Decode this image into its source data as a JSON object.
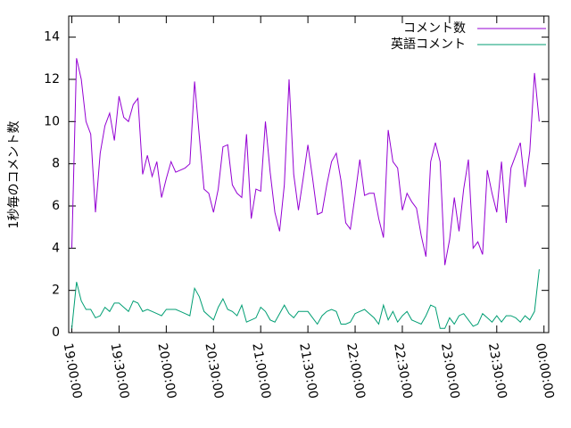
{
  "chart_data": {
    "type": "line",
    "ylabel": "1秒毎のコメント数",
    "x": [
      "19:00:00",
      "19:03:00",
      "19:06:00",
      "19:09:00",
      "19:12:00",
      "19:15:00",
      "19:18:00",
      "19:21:00",
      "19:24:00",
      "19:27:00",
      "19:30:00",
      "19:33:00",
      "19:36:00",
      "19:39:00",
      "19:42:00",
      "19:45:00",
      "19:48:00",
      "19:51:00",
      "19:54:00",
      "19:57:00",
      "20:00:00",
      "20:03:00",
      "20:06:00",
      "20:09:00",
      "20:12:00",
      "20:15:00",
      "20:18:00",
      "20:21:00",
      "20:24:00",
      "20:27:00",
      "20:30:00",
      "20:33:00",
      "20:36:00",
      "20:39:00",
      "20:42:00",
      "20:45:00",
      "20:48:00",
      "20:51:00",
      "20:54:00",
      "20:57:00",
      "21:00:00",
      "21:03:00",
      "21:06:00",
      "21:09:00",
      "21:12:00",
      "21:15:00",
      "21:18:00",
      "21:21:00",
      "21:24:00",
      "21:27:00",
      "21:30:00",
      "21:33:00",
      "21:36:00",
      "21:39:00",
      "21:42:00",
      "21:45:00",
      "21:48:00",
      "21:51:00",
      "21:54:00",
      "21:57:00",
      "22:00:00",
      "22:03:00",
      "22:06:00",
      "22:09:00",
      "22:12:00",
      "22:15:00",
      "22:18:00",
      "22:21:00",
      "22:24:00",
      "22:27:00",
      "22:30:00",
      "22:33:00",
      "22:36:00",
      "22:39:00",
      "22:42:00",
      "22:45:00",
      "22:48:00",
      "22:51:00",
      "22:54:00",
      "22:57:00",
      "23:00:00",
      "23:03:00",
      "23:06:00",
      "23:09:00",
      "23:12:00",
      "23:15:00",
      "23:18:00",
      "23:21:00",
      "23:24:00",
      "23:27:00",
      "23:30:00",
      "23:33:00",
      "23:36:00",
      "23:39:00",
      "23:42:00",
      "23:45:00",
      "23:48:00",
      "23:51:00",
      "23:54:00",
      "23:57:00"
    ],
    "series": [
      {
        "name": "コメント数",
        "color": "#9400d3",
        "values": [
          4.0,
          13.0,
          12.0,
          10.0,
          9.4,
          5.7,
          8.5,
          9.8,
          10.4,
          9.1,
          11.2,
          10.2,
          10.0,
          10.8,
          11.1,
          7.5,
          8.4,
          7.4,
          8.1,
          6.4,
          7.3,
          8.1,
          7.6,
          7.7,
          7.8,
          8.0,
          11.9,
          9.3,
          6.8,
          6.6,
          5.7,
          6.8,
          8.8,
          8.9,
          7.0,
          6.6,
          6.4,
          9.4,
          5.4,
          6.8,
          6.7,
          10.0,
          7.6,
          5.7,
          4.8,
          7.0,
          12.0,
          7.5,
          5.8,
          7.3,
          8.9,
          7.3,
          5.6,
          5.7,
          7.0,
          8.1,
          8.5,
          7.2,
          5.2,
          4.9,
          6.5,
          8.2,
          6.5,
          6.6,
          6.6,
          5.4,
          4.5,
          9.6,
          8.1,
          7.8,
          5.8,
          6.6,
          6.2,
          5.9,
          4.6,
          3.6,
          8.1,
          9.0,
          8.1,
          3.2,
          4.4,
          6.4,
          4.8,
          6.8,
          8.2,
          4.0,
          4.3,
          3.7,
          7.7,
          6.6,
          5.7,
          8.1,
          5.2,
          7.8,
          8.4,
          9.0,
          6.9,
          8.6,
          12.3,
          10.0
        ]
      },
      {
        "name": "英語コメント",
        "color": "#009e73",
        "values": [
          0.2,
          2.4,
          1.5,
          1.1,
          1.1,
          0.7,
          0.8,
          1.2,
          1.0,
          1.4,
          1.4,
          1.2,
          1.0,
          1.5,
          1.4,
          1.0,
          1.1,
          1.0,
          0.9,
          0.8,
          1.1,
          1.1,
          1.1,
          1.0,
          0.9,
          0.8,
          2.1,
          1.7,
          1.0,
          0.8,
          0.6,
          1.2,
          1.6,
          1.1,
          1.0,
          0.8,
          1.3,
          0.5,
          0.6,
          0.7,
          1.2,
          1.0,
          0.6,
          0.5,
          0.9,
          1.3,
          0.9,
          0.7,
          1.0,
          1.0,
          1.0,
          0.7,
          0.4,
          0.8,
          1.0,
          1.1,
          1.0,
          0.4,
          0.4,
          0.5,
          0.9,
          1.0,
          1.1,
          0.9,
          0.7,
          0.4,
          1.3,
          0.6,
          1.0,
          0.5,
          0.8,
          1.0,
          0.6,
          0.5,
          0.4,
          0.8,
          1.3,
          1.2,
          0.2,
          0.2,
          0.7,
          0.4,
          0.8,
          0.9,
          0.6,
          0.3,
          0.4,
          0.9,
          0.7,
          0.5,
          0.8,
          0.5,
          0.8,
          0.8,
          0.7,
          0.5,
          0.8,
          0.6,
          1.0,
          3.0
        ]
      }
    ],
    "xlim": [
      "18:58:00",
      "00:03:00"
    ],
    "xticks": [
      "19:00:00",
      "19:30:00",
      "20:00:00",
      "20:30:00",
      "21:00:00",
      "21:30:00",
      "22:00:00",
      "22:30:00",
      "23:00:00",
      "23:30:00",
      "00:00:00"
    ],
    "ylim": [
      0,
      15
    ],
    "yticks": [
      0,
      2,
      4,
      6,
      8,
      10,
      12,
      14
    ],
    "legend": "top-right"
  }
}
